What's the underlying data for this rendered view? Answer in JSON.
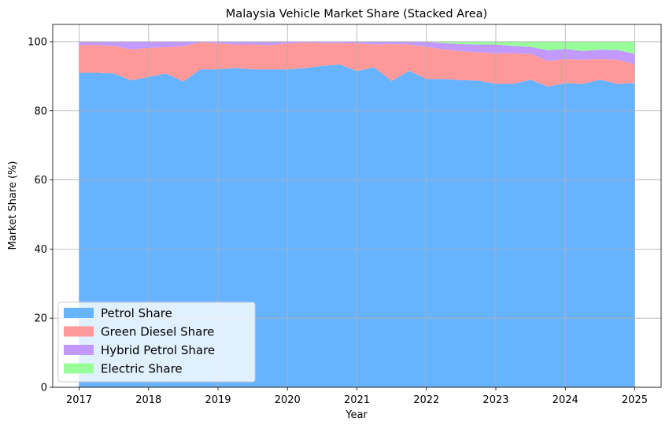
{
  "chart_data": {
    "type": "area",
    "stacked": true,
    "title": "Malaysia Vehicle Market Share (Stacked Area)",
    "xlabel": "Year",
    "ylabel": "Market Share (%)",
    "xlim": [
      2016.62,
      2025.38
    ],
    "ylim": [
      0,
      105
    ],
    "xticks": [
      2017,
      2018,
      2019,
      2020,
      2021,
      2022,
      2023,
      2024,
      2025
    ],
    "yticks": [
      0,
      20,
      40,
      60,
      80,
      100
    ],
    "grid": true,
    "legend_position": "lower-left",
    "x": [
      2017.0,
      2017.25,
      2017.5,
      2017.75,
      2018.0,
      2018.25,
      2018.5,
      2018.75,
      2019.0,
      2019.25,
      2019.5,
      2019.75,
      2020.0,
      2020.25,
      2020.5,
      2020.75,
      2021.0,
      2021.25,
      2021.5,
      2021.75,
      2022.0,
      2022.25,
      2022.5,
      2022.75,
      2023.0,
      2023.25,
      2023.5,
      2023.75,
      2024.0,
      2024.25,
      2024.5,
      2024.75,
      2025.0
    ],
    "series": [
      {
        "name": "Petrol Share",
        "color": "#66b3ff",
        "values": [
          91.0,
          91.0,
          90.8,
          88.8,
          89.8,
          90.8,
          88.5,
          92.0,
          92.0,
          92.4,
          92.0,
          92.0,
          92.0,
          92.4,
          93.0,
          93.4,
          91.5,
          92.6,
          88.6,
          91.6,
          89.2,
          89.2,
          88.9,
          88.7,
          87.8,
          87.8,
          89.0,
          87.0,
          88.0,
          87.8,
          89.0,
          87.8,
          88.0
        ]
      },
      {
        "name": "Green Diesel Share",
        "color": "#ff9999",
        "values": [
          8.0,
          8.0,
          8.0,
          9.0,
          8.4,
          7.6,
          10.2,
          7.8,
          7.5,
          6.8,
          7.2,
          7.0,
          7.5,
          7.3,
          6.6,
          6.2,
          8.0,
          6.6,
          10.7,
          7.6,
          9.3,
          8.6,
          8.3,
          8.2,
          8.8,
          8.8,
          7.5,
          7.4,
          7.0,
          7.0,
          6.0,
          7.0,
          5.5
        ]
      },
      {
        "name": "Hybrid Petrol Share",
        "color": "#c299ff",
        "values": [
          1.0,
          1.0,
          1.2,
          2.2,
          1.8,
          1.6,
          1.3,
          0.2,
          0.5,
          0.8,
          0.8,
          1.0,
          0.5,
          0.3,
          0.4,
          0.4,
          0.5,
          0.8,
          0.7,
          0.8,
          1.5,
          1.8,
          2.1,
          2.3,
          2.6,
          2.2,
          2.0,
          3.1,
          2.9,
          2.5,
          2.7,
          2.8,
          3.0
        ]
      },
      {
        "name": "Electric Share",
        "color": "#99ff99",
        "values": [
          0,
          0,
          0,
          0,
          0,
          0,
          0,
          0,
          0,
          0,
          0,
          0,
          0,
          0,
          0,
          0,
          0,
          0,
          0,
          0,
          0,
          0.4,
          0.7,
          0.8,
          0.8,
          1.2,
          1.5,
          2.5,
          2.1,
          2.7,
          2.3,
          2.4,
          3.5
        ]
      }
    ]
  }
}
